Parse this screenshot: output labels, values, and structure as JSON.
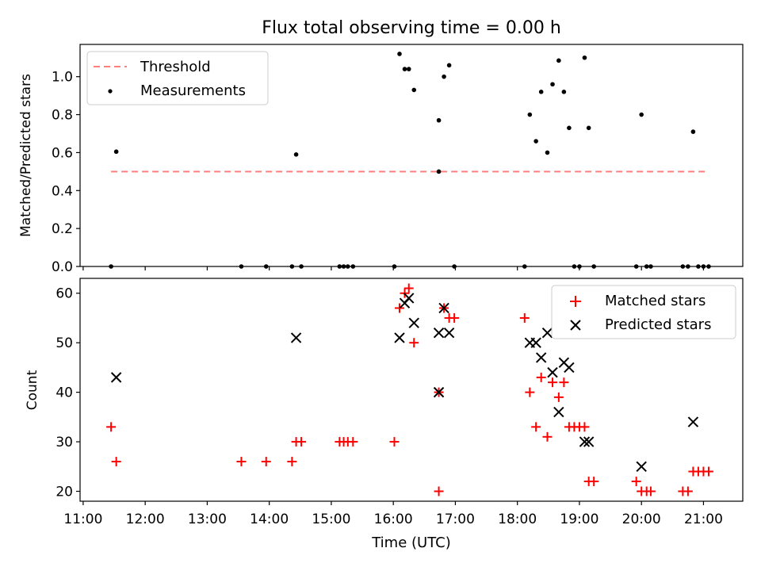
{
  "figure": {
    "title": "Flux total observing time = 0.00 h",
    "xlabel": "Time (UTC)"
  },
  "chart_data": [
    {
      "type": "scatter",
      "ylabel": "Matched/Predicted stars",
      "xlim": [
        "10:57",
        "21:38"
      ],
      "ylim": [
        0,
        1.17
      ],
      "yticks": [
        0.0,
        0.2,
        0.4,
        0.6,
        0.8,
        1.0
      ],
      "ytick_labels": [
        "0.0",
        "0.2",
        "0.4",
        "0.6",
        "0.8",
        "1.0"
      ],
      "xticks": [
        "11:00",
        "12:00",
        "13:00",
        "14:00",
        "15:00",
        "16:00",
        "17:00",
        "18:00",
        "19:00",
        "20:00",
        "21:00"
      ],
      "show_xtick_labels": false,
      "grid": false,
      "legend": {
        "placement": "top-left"
      },
      "series": [
        {
          "name": "Threshold",
          "kind": "line",
          "style": "dashed",
          "color": "#ff7f7f",
          "points": [
            {
              "x": "11:27",
              "y": 0.5
            },
            {
              "x": "21:05",
              "y": 0.5
            }
          ]
        },
        {
          "name": "Measurements",
          "kind": "scatter",
          "marker": "dot",
          "color": "#000000",
          "points": [
            {
              "x": "11:27",
              "y": 0.0
            },
            {
              "x": "11:32",
              "y": 0.605
            },
            {
              "x": "13:33",
              "y": 0.0
            },
            {
              "x": "13:57",
              "y": 0.0
            },
            {
              "x": "14:22",
              "y": 0.0
            },
            {
              "x": "14:26",
              "y": 0.59
            },
            {
              "x": "14:31",
              "y": 0.0
            },
            {
              "x": "15:08",
              "y": 0.0
            },
            {
              "x": "15:12",
              "y": 0.0
            },
            {
              "x": "15:16",
              "y": 0.0
            },
            {
              "x": "15:21",
              "y": 0.0
            },
            {
              "x": "16:01",
              "y": 0.0
            },
            {
              "x": "16:06",
              "y": 1.12
            },
            {
              "x": "16:11",
              "y": 1.04
            },
            {
              "x": "16:15",
              "y": 1.04
            },
            {
              "x": "16:20",
              "y": 0.93
            },
            {
              "x": "16:44",
              "y": 0.77
            },
            {
              "x": "16:44",
              "y": 0.5
            },
            {
              "x": "16:49",
              "y": 1.0
            },
            {
              "x": "16:54",
              "y": 1.06
            },
            {
              "x": "16:59",
              "y": 0.0
            },
            {
              "x": "18:07",
              "y": 0.0
            },
            {
              "x": "18:12",
              "y": 0.8
            },
            {
              "x": "18:18",
              "y": 0.66
            },
            {
              "x": "18:23",
              "y": 0.92
            },
            {
              "x": "18:29",
              "y": 0.6
            },
            {
              "x": "18:34",
              "y": 0.96
            },
            {
              "x": "18:40",
              "y": 1.085
            },
            {
              "x": "18:45",
              "y": 0.92
            },
            {
              "x": "18:50",
              "y": 0.73
            },
            {
              "x": "18:55",
              "y": 0.0
            },
            {
              "x": "19:00",
              "y": 0.0
            },
            {
              "x": "19:05",
              "y": 1.1
            },
            {
              "x": "19:09",
              "y": 0.73
            },
            {
              "x": "19:14",
              "y": 0.0
            },
            {
              "x": "19:55",
              "y": 0.0
            },
            {
              "x": "20:00",
              "y": 0.8
            },
            {
              "x": "20:05",
              "y": 0.0
            },
            {
              "x": "20:09",
              "y": 0.0
            },
            {
              "x": "20:40",
              "y": 0.0
            },
            {
              "x": "20:45",
              "y": 0.0
            },
            {
              "x": "20:50",
              "y": 0.71
            },
            {
              "x": "20:55",
              "y": 0.0
            },
            {
              "x": "21:00",
              "y": 0.0
            },
            {
              "x": "21:05",
              "y": 0.0
            }
          ]
        }
      ]
    },
    {
      "type": "scatter",
      "ylabel": "Count",
      "xlabel": "Time (UTC)",
      "xlim": [
        "10:57",
        "21:38"
      ],
      "ylim": [
        18,
        63
      ],
      "yticks": [
        20,
        30,
        40,
        50,
        60
      ],
      "ytick_labels": [
        "20",
        "30",
        "40",
        "50",
        "60"
      ],
      "xticks": [
        "11:00",
        "12:00",
        "13:00",
        "14:00",
        "15:00",
        "16:00",
        "17:00",
        "18:00",
        "19:00",
        "20:00",
        "21:00"
      ],
      "xtick_labels": [
        "11:00",
        "12:00",
        "13:00",
        "14:00",
        "15:00",
        "16:00",
        "17:00",
        "18:00",
        "19:00",
        "20:00",
        "21:00"
      ],
      "grid": false,
      "legend": {
        "placement": "top-right"
      },
      "series": [
        {
          "name": "Matched stars",
          "marker": "plus",
          "color": "#ff0000",
          "points": [
            {
              "x": "11:27",
              "y": 33
            },
            {
              "x": "11:32",
              "y": 26
            },
            {
              "x": "13:33",
              "y": 26
            },
            {
              "x": "13:57",
              "y": 26
            },
            {
              "x": "14:22",
              "y": 26
            },
            {
              "x": "14:26",
              "y": 30
            },
            {
              "x": "14:31",
              "y": 30
            },
            {
              "x": "15:08",
              "y": 30
            },
            {
              "x": "15:12",
              "y": 30
            },
            {
              "x": "15:16",
              "y": 30
            },
            {
              "x": "15:21",
              "y": 30
            },
            {
              "x": "16:01",
              "y": 30
            },
            {
              "x": "16:06",
              "y": 57
            },
            {
              "x": "16:11",
              "y": 60
            },
            {
              "x": "16:15",
              "y": 61
            },
            {
              "x": "16:20",
              "y": 50
            },
            {
              "x": "16:44",
              "y": 40
            },
            {
              "x": "16:44",
              "y": 20
            },
            {
              "x": "16:49",
              "y": 57
            },
            {
              "x": "16:54",
              "y": 55
            },
            {
              "x": "16:59",
              "y": 55
            },
            {
              "x": "18:07",
              "y": 55
            },
            {
              "x": "18:12",
              "y": 40
            },
            {
              "x": "18:18",
              "y": 33
            },
            {
              "x": "18:23",
              "y": 43
            },
            {
              "x": "18:29",
              "y": 31
            },
            {
              "x": "18:34",
              "y": 42
            },
            {
              "x": "18:40",
              "y": 39
            },
            {
              "x": "18:45",
              "y": 42
            },
            {
              "x": "18:50",
              "y": 33
            },
            {
              "x": "18:55",
              "y": 33
            },
            {
              "x": "19:00",
              "y": 33
            },
            {
              "x": "19:05",
              "y": 33
            },
            {
              "x": "19:09",
              "y": 22
            },
            {
              "x": "19:14",
              "y": 22
            },
            {
              "x": "19:55",
              "y": 22
            },
            {
              "x": "20:00",
              "y": 20
            },
            {
              "x": "20:05",
              "y": 20
            },
            {
              "x": "20:09",
              "y": 20
            },
            {
              "x": "20:40",
              "y": 20
            },
            {
              "x": "20:45",
              "y": 20
            },
            {
              "x": "20:50",
              "y": 24
            },
            {
              "x": "20:55",
              "y": 24
            },
            {
              "x": "21:00",
              "y": 24
            },
            {
              "x": "21:05",
              "y": 24
            }
          ]
        },
        {
          "name": "Predicted stars",
          "marker": "x",
          "color": "#000000",
          "points": [
            {
              "x": "11:32",
              "y": 43
            },
            {
              "x": "14:26",
              "y": 51
            },
            {
              "x": "16:06",
              "y": 51
            },
            {
              "x": "16:11",
              "y": 58
            },
            {
              "x": "16:15",
              "y": 59
            },
            {
              "x": "16:20",
              "y": 54
            },
            {
              "x": "16:44",
              "y": 52
            },
            {
              "x": "16:44",
              "y": 40
            },
            {
              "x": "16:49",
              "y": 57
            },
            {
              "x": "16:54",
              "y": 52
            },
            {
              "x": "18:12",
              "y": 50
            },
            {
              "x": "18:18",
              "y": 50
            },
            {
              "x": "18:23",
              "y": 47
            },
            {
              "x": "18:29",
              "y": 52
            },
            {
              "x": "18:34",
              "y": 44
            },
            {
              "x": "18:40",
              "y": 36
            },
            {
              "x": "18:45",
              "y": 46
            },
            {
              "x": "18:50",
              "y": 45
            },
            {
              "x": "19:05",
              "y": 30
            },
            {
              "x": "19:09",
              "y": 30
            },
            {
              "x": "20:00",
              "y": 25
            },
            {
              "x": "20:50",
              "y": 34
            }
          ]
        }
      ]
    }
  ]
}
